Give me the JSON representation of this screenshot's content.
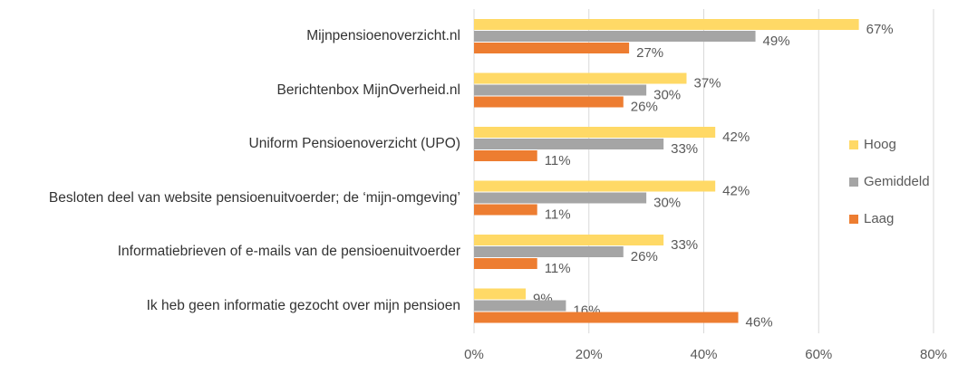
{
  "chart_data": {
    "type": "bar",
    "orientation": "horizontal",
    "categories": [
      "Mijnpensioenoverzicht.nl",
      "Berichtenbox MijnOverheid.nl",
      "Uniform Pensioenoverzicht (UPO)",
      "Besloten deel van website pensioenuitvoerder; de ‘mijn-omgeving’",
      "Informatiebrieven of e-mails van de pensioenuitvoerder",
      "Ik heb geen informatie gezocht over mijn pensioen"
    ],
    "series": [
      {
        "name": "Hoog",
        "color": "#FFD966",
        "values": [
          67,
          37,
          42,
          42,
          33,
          9
        ],
        "value_labels": [
          "67%",
          "37%",
          "42%",
          "42%",
          "33%",
          "9%"
        ]
      },
      {
        "name": "Gemiddeld",
        "color": "#A5A5A5",
        "values": [
          49,
          30,
          33,
          30,
          26,
          16
        ],
        "value_labels": [
          "49%",
          "30%",
          "33%",
          "30%",
          "26%",
          "16%"
        ]
      },
      {
        "name": "Laag",
        "color": "#ED7D31",
        "values": [
          27,
          26,
          11,
          11,
          11,
          46
        ],
        "value_labels": [
          "27%",
          "26%",
          "11%",
          "11%",
          "11%",
          "46%"
        ]
      }
    ],
    "xlim": [
      0,
      80
    ],
    "xticks": [
      {
        "value": 0,
        "label": "0%"
      },
      {
        "value": 20,
        "label": "20%"
      },
      {
        "value": 40,
        "label": "40%"
      },
      {
        "value": 60,
        "label": "60%"
      },
      {
        "value": 80,
        "label": "80%"
      }
    ],
    "grid": true,
    "legend": "right"
  }
}
